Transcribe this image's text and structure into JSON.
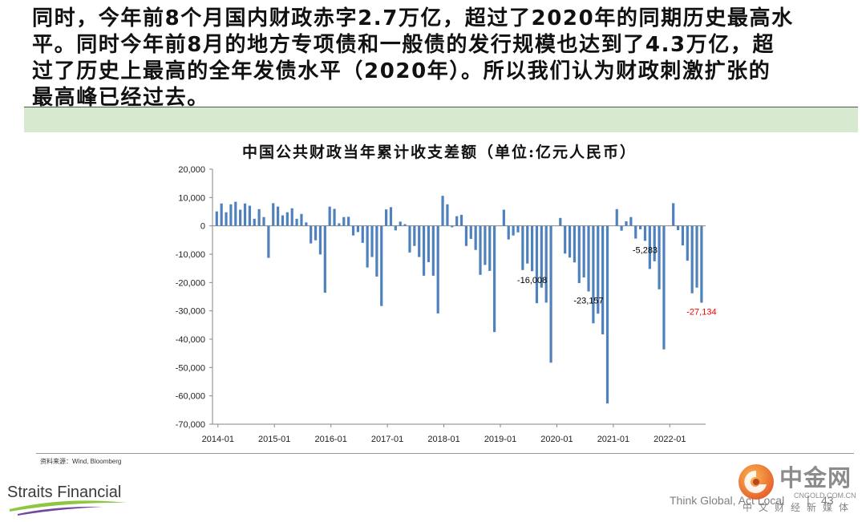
{
  "intro": {
    "lines": [
      "同时，今年前8个月国内财政赤字2.7万亿，超过了2020年的同期历史最高水",
      "平。同时今年前8月的地方专项债和一般债的发行规模也达到了4.3万亿，超",
      "过了历史上最高的全年发债水平（2020年）。所以我们认为财政刺激扩张的",
      "最高峰已经过去。"
    ]
  },
  "chart_data": {
    "type": "bar",
    "title": "中国公共财政当年累计收支差额（单位:亿元人民币）",
    "x": [
      "2014-01",
      "2014-02",
      "2014-03",
      "2014-04",
      "2014-05",
      "2014-06",
      "2014-07",
      "2014-08",
      "2014-09",
      "2014-10",
      "2014-11",
      "2014-12",
      "2015-01",
      "2015-02",
      "2015-03",
      "2015-04",
      "2015-05",
      "2015-06",
      "2015-07",
      "2015-08",
      "2015-09",
      "2015-10",
      "2015-11",
      "2015-12",
      "2016-01",
      "2016-02",
      "2016-03",
      "2016-04",
      "2016-05",
      "2016-06",
      "2016-07",
      "2016-08",
      "2016-09",
      "2016-10",
      "2016-11",
      "2016-12",
      "2017-01",
      "2017-02",
      "2017-03",
      "2017-04",
      "2017-05",
      "2017-06",
      "2017-07",
      "2017-08",
      "2017-09",
      "2017-10",
      "2017-11",
      "2017-12",
      "2018-01",
      "2018-02",
      "2018-03",
      "2018-04",
      "2018-05",
      "2018-06",
      "2018-07",
      "2018-08",
      "2018-09",
      "2018-10",
      "2018-11",
      "2018-12",
      "2019-01",
      "2019-02",
      "2019-03",
      "2019-04",
      "2019-05",
      "2019-06",
      "2019-07",
      "2019-08",
      "2019-09",
      "2019-10",
      "2019-11",
      "2019-12",
      "2020-01",
      "2020-02",
      "2020-03",
      "2020-04",
      "2020-05",
      "2020-06",
      "2020-07",
      "2020-08",
      "2020-09",
      "2020-10",
      "2020-11",
      "2020-12",
      "2021-01",
      "2021-02",
      "2021-03",
      "2021-04",
      "2021-05",
      "2021-06",
      "2021-07",
      "2021-08",
      "2021-09",
      "2021-10",
      "2021-11",
      "2021-12",
      "2022-01",
      "2022-02",
      "2022-03",
      "2022-04",
      "2022-05",
      "2022-06",
      "2022-07",
      "2022-08"
    ],
    "values": [
      5100,
      7900,
      4800,
      7600,
      8500,
      5700,
      7900,
      7100,
      2500,
      5900,
      3100,
      -11300,
      8000,
      6800,
      3700,
      4800,
      6200,
      2500,
      4200,
      1200,
      -6200,
      -5100,
      -10100,
      -23600,
      6800,
      6000,
      900,
      3100,
      3200,
      -3400,
      -2200,
      -6000,
      -14700,
      -11000,
      -17900,
      -28300,
      5800,
      6600,
      -1600,
      1500,
      600,
      -9400,
      -7100,
      -11000,
      -17600,
      -12800,
      -17600,
      -30900,
      10600,
      7600,
      -500,
      3400,
      3900,
      -7100,
      -4600,
      -8500,
      -17300,
      -13800,
      -15900,
      -37500,
      null,
      5700,
      -4800,
      -3400,
      -2300,
      -15600,
      -13300,
      -16008,
      -27300,
      -21800,
      -27100,
      -48300,
      null,
      2800,
      -9800,
      -11200,
      -12900,
      -20200,
      -18200,
      -23157,
      -34400,
      -31000,
      -38300,
      -62700,
      null,
      5900,
      -1700,
      1600,
      3100,
      -4500,
      -1200,
      -5283,
      -15200,
      -12500,
      -22400,
      -43600,
      null,
      8000,
      -1500,
      -6900,
      -12300,
      -23800,
      -21800,
      -27134
    ],
    "x_ticks": [
      "2014-01",
      "2015-01",
      "2016-01",
      "2017-01",
      "2018-01",
      "2019-01",
      "2020-01",
      "2021-01",
      "2022-01"
    ],
    "y_ticks": [
      20000,
      10000,
      0,
      -10000,
      -20000,
      -30000,
      -40000,
      -50000,
      -60000,
      -70000
    ],
    "y_tick_labels": [
      "20,000",
      "10,000",
      "0",
      "-10,000",
      "-20,000",
      "-30,000",
      "-40,000",
      "-50,000",
      "-60,000",
      "-70,000"
    ],
    "ylim": [
      -70000,
      20000
    ],
    "grid": false,
    "annotations": [
      {
        "x": "2019-08",
        "label": "-16,008",
        "color": "#000000"
      },
      {
        "x": "2020-08",
        "label": "-23,157",
        "color": "#000000"
      },
      {
        "x": "2021-08",
        "label": "-5,283",
        "color": "#000000"
      },
      {
        "x": "2022-08",
        "label": "-27,134",
        "color": "#ff0000"
      }
    ],
    "colors": {
      "bars": "#4f81bd",
      "axis": "#868686"
    }
  },
  "slide": {
    "source": "资料来源：Wind, Bloomberg",
    "highlight_band_color": "#d7e9cf"
  },
  "branding": {
    "company": "Straits Financial",
    "tagline": "Think Global, Act Local",
    "separator": "|",
    "page_number": "43"
  },
  "watermark": {
    "brand": "中金网",
    "domain": "CNGOLD.COM.CN",
    "slogan": "中文财经新媒体",
    "icon": "cngold-logo-icon"
  }
}
